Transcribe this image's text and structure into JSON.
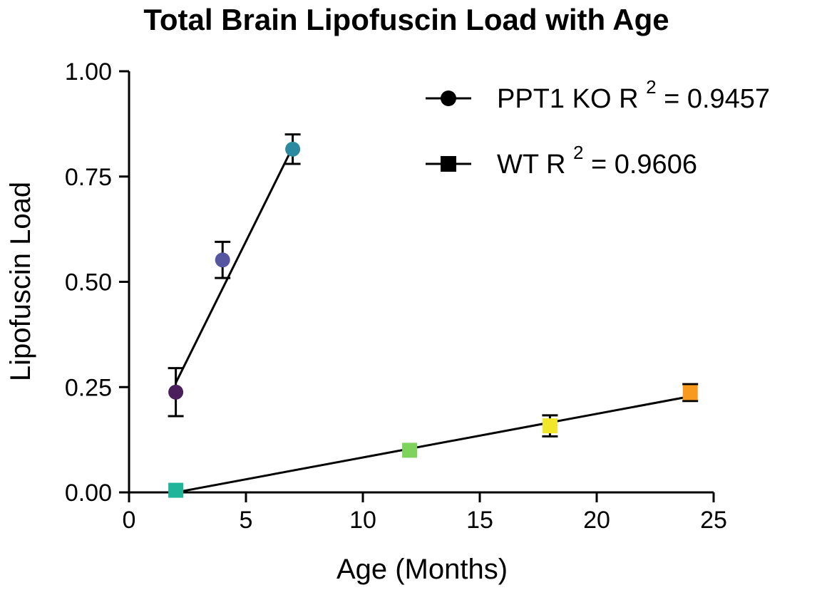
{
  "chart_data": {
    "type": "scatter",
    "title": "Total Brain Lipofuscin Load with Age",
    "xlabel": "Age (Months)",
    "ylabel": "Lipofuscin Load",
    "xlim": [
      0,
      25
    ],
    "ylim": [
      0,
      1.0
    ],
    "xticks": [
      0,
      5,
      10,
      15,
      20,
      25
    ],
    "xtick_labels": [
      "0",
      "5",
      "10",
      "15",
      "20",
      "25"
    ],
    "yticks": [
      0,
      0.25,
      0.5,
      0.75,
      1.0
    ],
    "ytick_labels": [
      "0.00",
      "0.25",
      "0.50",
      "0.75",
      "1.00"
    ],
    "grid": false,
    "legend_position": "top-right",
    "series": [
      {
        "name": "PPT1 KO",
        "r2_label": "R",
        "r2_sup": "2",
        "r2_value": "= 0.9457",
        "marker": "circle",
        "x": [
          2,
          4,
          7
        ],
        "y": [
          0.238,
          0.552,
          0.815
        ],
        "err": [
          0.057,
          0.043,
          0.035
        ],
        "colors": [
          "#4a1f5c",
          "#5656a0",
          "#2b8aa0"
        ],
        "fit": {
          "x": [
            2,
            7
          ],
          "y": [
            0.26,
            0.82
          ]
        }
      },
      {
        "name": "WT",
        "r2_label": "R",
        "r2_sup": "2",
        "r2_value": "= 0.9606",
        "marker": "square",
        "x": [
          2,
          12,
          18,
          24
        ],
        "y": [
          0.005,
          0.1,
          0.158,
          0.237
        ],
        "err": [
          0.0,
          0.0,
          0.025,
          0.02
        ],
        "colors": [
          "#20b49a",
          "#7ed35c",
          "#f2e62a",
          "#f79a1e"
        ],
        "fit": {
          "x": [
            2,
            24
          ],
          "y": [
            0.0,
            0.228
          ]
        }
      }
    ]
  }
}
